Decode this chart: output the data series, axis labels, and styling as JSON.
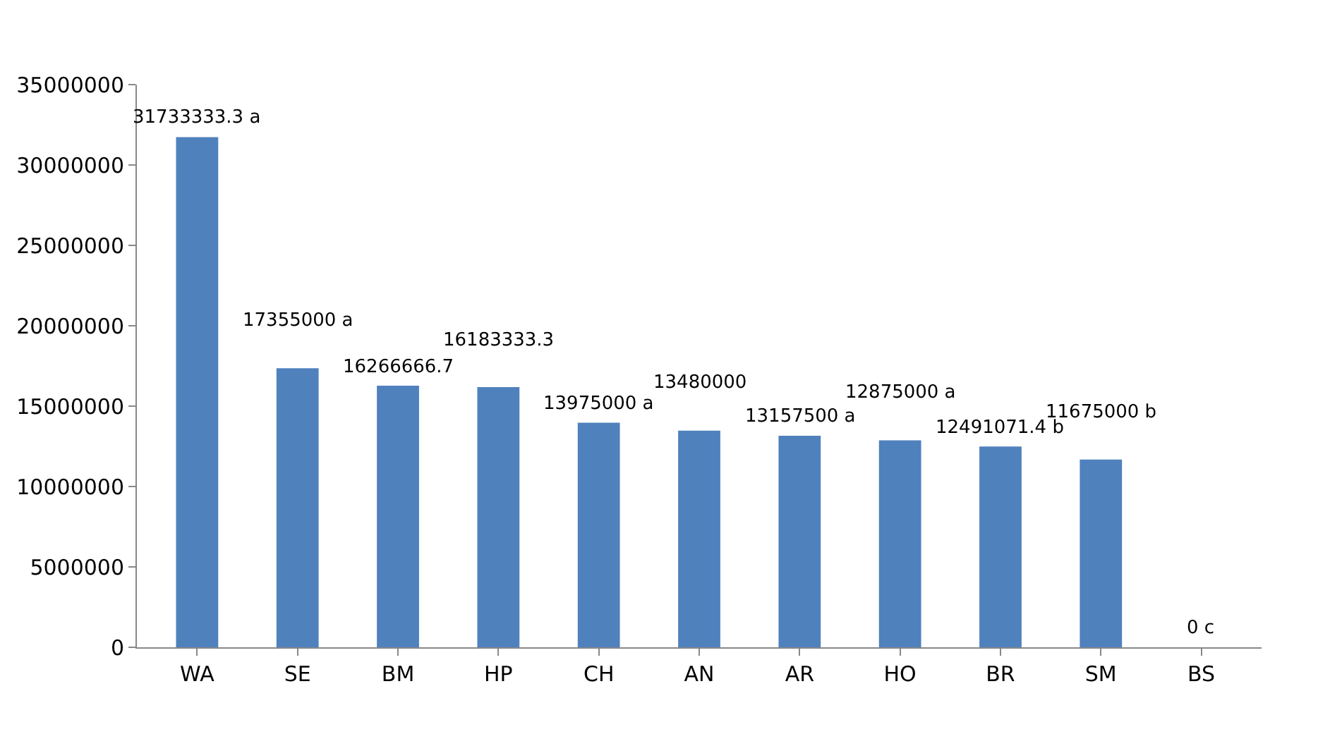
{
  "chart_data": {
    "type": "bar",
    "categories": [
      "WA",
      "SE",
      "BM",
      "HP",
      "CH",
      "AN",
      "AR",
      "HO",
      "BR",
      "SM",
      "BS"
    ],
    "values": [
      31733333.3,
      17355000,
      16266666.7,
      16183333.3,
      13975000,
      13480000,
      13157500,
      12875000,
      12491071.4,
      11675000,
      0
    ],
    "value_labels": [
      "31733333.3 a",
      "17355000 a",
      "16266666.7",
      "16183333.3",
      "13975000 a",
      "13480000",
      "13157500 a",
      "12875000 a",
      "12491071.4 b",
      "11675000 b",
      "0 c"
    ],
    "color": "#4f81bd",
    "ylim": [
      0,
      35000000
    ],
    "yticks": [
      0,
      5000000,
      10000000,
      15000000,
      20000000,
      25000000,
      30000000,
      35000000
    ],
    "grid": false,
    "legend": false
  }
}
